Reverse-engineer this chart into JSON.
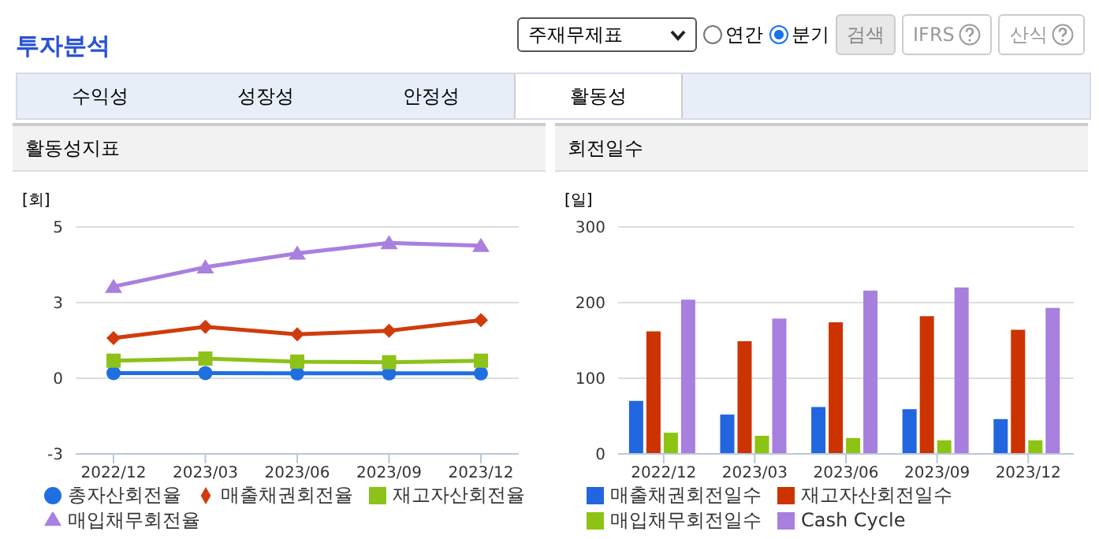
{
  "chart_data": [
    {
      "type": "other",
      "title": "투자분석",
      "annotations": [
        "주재무제표",
        "연간",
        "분기",
        "검색",
        "IFRS",
        "산식",
        "수익성",
        "성장성",
        "안정성",
        "활동성"
      ]
    },
    {
      "type": "line",
      "title": "활동성지표",
      "ylabel": "[회]",
      "categories": [
        "2022/12",
        "2023/03",
        "2023/06",
        "2023/09",
        "2023/12"
      ],
      "ylim": [
        -2.5,
        5
      ],
      "yticks": [
        {
          "value": -2.5,
          "label": "-3"
        },
        0,
        {
          "value": 2.5,
          "label": "3"
        },
        5
      ],
      "grid": "y",
      "legend": "bottom",
      "series": [
        {
          "name": "총자산회전율",
          "color": "#1f6fe0",
          "marker": "circle",
          "values": [
            0.17,
            0.17,
            0.16,
            0.16,
            0.16
          ]
        },
        {
          "name": "매출채권회전율",
          "color": "#d13b0b",
          "marker": "diamond",
          "values": [
            1.33,
            1.7,
            1.45,
            1.57,
            1.92
          ]
        },
        {
          "name": "재고자산회전율",
          "color": "#8cc21a",
          "marker": "square",
          "values": [
            0.58,
            0.65,
            0.55,
            0.53,
            0.58
          ]
        },
        {
          "name": "매입채무회전율",
          "color": "#a97fe0",
          "marker": "triangle",
          "values": [
            3.03,
            3.67,
            4.13,
            4.47,
            4.38
          ]
        }
      ]
    },
    {
      "type": "bar",
      "title": "회전일수",
      "ylabel": "[일]",
      "categories": [
        "2022/12",
        "2023/03",
        "2023/06",
        "2023/09",
        "2023/12"
      ],
      "ylim": [
        0,
        300
      ],
      "yticks": [
        0,
        100,
        200,
        300
      ],
      "grid": "y",
      "legend": "bottom",
      "series": [
        {
          "name": "매출채권회전일수",
          "color": "#2166de",
          "values": [
            70,
            52,
            62,
            59,
            46
          ]
        },
        {
          "name": "재고자산회전일수",
          "color": "#cc3300",
          "values": [
            162,
            149,
            174,
            182,
            164
          ]
        },
        {
          "name": "매입채무회전일수",
          "color": "#8cc414",
          "values": [
            28,
            24,
            21,
            18,
            18
          ]
        },
        {
          "name": "Cash Cycle",
          "color": "#a77fde",
          "values": [
            204,
            179,
            216,
            220,
            193
          ]
        }
      ]
    }
  ]
}
